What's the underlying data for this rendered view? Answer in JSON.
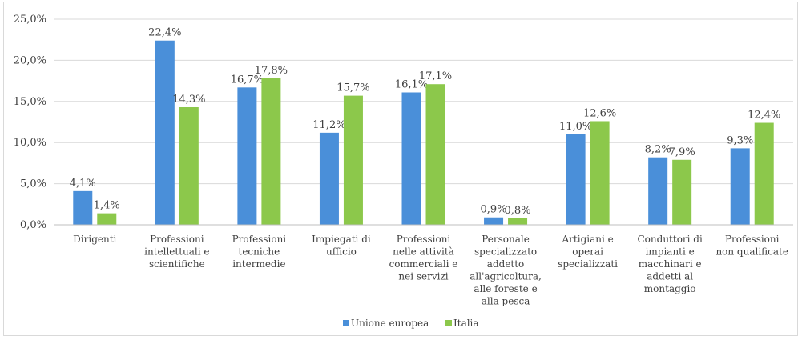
{
  "chart_data": {
    "type": "bar",
    "title": "",
    "xlabel": "",
    "ylabel": "",
    "ylim": [
      0,
      25
    ],
    "yticks": [
      0,
      5,
      10,
      15,
      20,
      25
    ],
    "ytick_labels": [
      "0,0%",
      "5,0%",
      "10,0%",
      "15,0%",
      "20,0%",
      "25,0%"
    ],
    "grid": "horizontal",
    "legend_position": "bottom",
    "categories": [
      [
        "Dirigenti"
      ],
      [
        "Professioni",
        "intellettuali e",
        "scientifiche"
      ],
      [
        "Professioni",
        "tecniche",
        "intermedie"
      ],
      [
        "Impiegati di",
        "ufficio"
      ],
      [
        "Professioni",
        "nelle attività",
        "commerciali e",
        "nei servizi"
      ],
      [
        "Personale",
        "specializzato",
        "addetto",
        "all'agricoltura,",
        "alle foreste e",
        "alla pesca"
      ],
      [
        "Artigiani e",
        "operai",
        "specializzati"
      ],
      [
        "Conduttori di",
        "impianti e",
        "macchinari e",
        "addetti al",
        "montaggio"
      ],
      [
        "Professioni",
        "non qualificate"
      ]
    ],
    "series": [
      {
        "name": "Unione europea",
        "color": "#4a8fd9",
        "values": [
          4.1,
          22.4,
          16.7,
          11.2,
          16.1,
          0.9,
          11.0,
          8.2,
          9.3
        ],
        "labels": [
          "4,1%",
          "22,4%",
          "16,7%",
          "11,2%",
          "16,1%",
          "0,9%",
          "11,0%",
          "8,2%",
          "9,3%"
        ]
      },
      {
        "name": "Italia",
        "color": "#8cc84b",
        "values": [
          1.4,
          14.3,
          17.8,
          15.7,
          17.1,
          0.8,
          12.6,
          7.9,
          12.4
        ],
        "labels": [
          "1,4%",
          "14,3%",
          "17,8%",
          "15,7%",
          "17,1%",
          "0,8%",
          "12,6%",
          "7,9%",
          "12,4%"
        ]
      }
    ]
  }
}
